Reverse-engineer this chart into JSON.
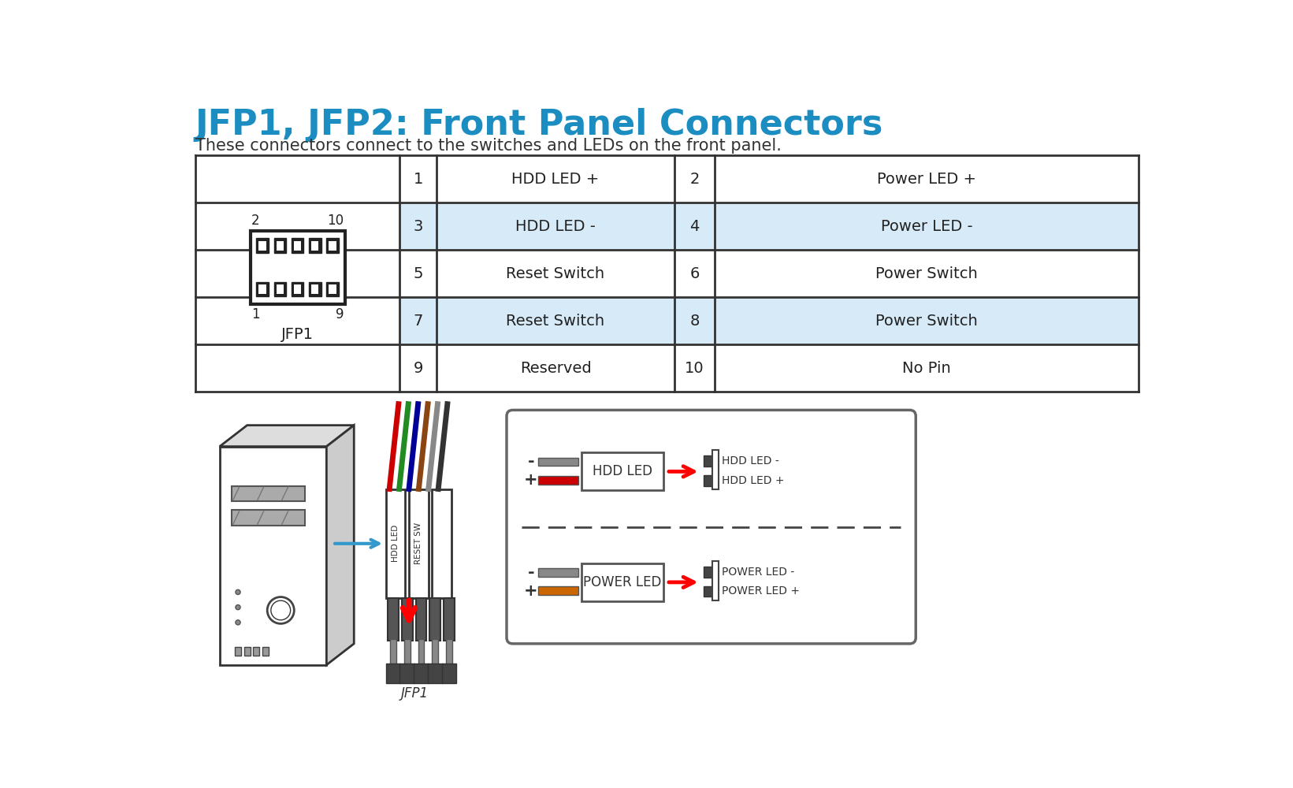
{
  "title": "JFP1, JFP2: Front Panel Connectors",
  "subtitle": "These connectors connect to the switches and LEDs on the front panel.",
  "title_color": "#1B8DC0",
  "title_fontsize": 32,
  "subtitle_fontsize": 15,
  "bg_color": "#ffffff",
  "table_rows": [
    {
      "pin1": "1",
      "label1": "HDD LED +",
      "pin2": "2",
      "label2": "Power LED +",
      "bg": "#ffffff"
    },
    {
      "pin1": "3",
      "label1": "HDD LED -",
      "pin2": "4",
      "label2": "Power LED -",
      "bg": "#d6eaf8"
    },
    {
      "pin1": "5",
      "label1": "Reset Switch",
      "pin2": "6",
      "label2": "Power Switch",
      "bg": "#ffffff"
    },
    {
      "pin1": "7",
      "label1": "Reset Switch",
      "pin2": "8",
      "label2": "Power Switch",
      "bg": "#d6eaf8"
    },
    {
      "pin1": "9",
      "label1": "Reserved",
      "pin2": "10",
      "label2": "No Pin",
      "bg": "#ffffff"
    }
  ],
  "connector_label": "JFP1",
  "pin_top_left": "2",
  "pin_top_right": "10",
  "pin_bot_left": "1",
  "pin_bot_right": "9",
  "hdd_led_label": "HDD LED",
  "power_led_label": "POWER LED",
  "hdd_led_right1": "HDD LED -",
  "hdd_led_right2": "HDD LED +",
  "power_led_right1": "POWER LED -",
  "power_led_right2": "POWER LED +",
  "wire_colors": [
    "#cc0000",
    "#228B22",
    "#000099",
    "#8B4513",
    "#888888"
  ],
  "table_border_color": "#333333",
  "table_text_color": "#222222",
  "text_fontsize": 14
}
